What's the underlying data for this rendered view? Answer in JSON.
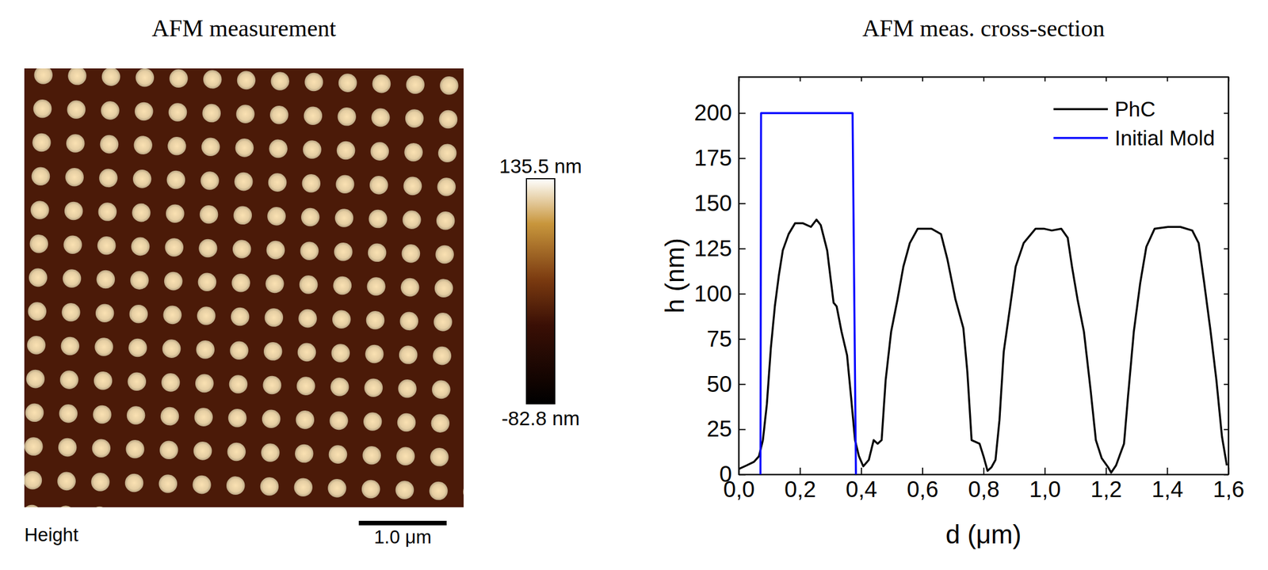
{
  "chart_data": [
    {
      "type": "image",
      "title": "AFM measurement",
      "label": "Height",
      "xlim": [
        0,
        5
      ],
      "ylim": [
        0,
        5
      ],
      "tick_labels": false,
      "period": 0.385,
      "pillar_diameter": 0.21,
      "pillar_height": 115,
      "background_height": 5,
      "colorbar": {
        "range": [
          -82.8,
          135.5
        ],
        "ticks": [
          {
            "value": 135.5,
            "label": "135.5 nm"
          },
          {
            "value": -82.8,
            "label": "-82.8 nm"
          }
        ]
      },
      "scale_bar": {
        "value": 1.0,
        "label": "1.0 μm"
      }
    },
    {
      "type": "line",
      "title": "AFM meas. cross-section",
      "xlabel": "d (μm)",
      "ylabel": "h (nm)",
      "xlim": [
        0,
        1.6
      ],
      "ylim": [
        0,
        220
      ],
      "xticks": [
        {
          "value": 0,
          "label": "0,0"
        },
        {
          "value": 0.2,
          "label": "0,2"
        },
        {
          "value": 0.4,
          "label": "0,4"
        },
        {
          "value": 0.6,
          "label": "0,6"
        },
        {
          "value": 0.8,
          "label": "0,8"
        },
        {
          "value": 1.0,
          "label": "1,0"
        },
        {
          "value": 1.2,
          "label": "1,2"
        },
        {
          "value": 1.4,
          "label": "1,4"
        },
        {
          "value": 1.6,
          "label": "1,6"
        }
      ],
      "yticks": [
        0,
        25,
        50,
        75,
        100,
        125,
        150,
        175,
        200
      ],
      "grid": false,
      "legend": "upper right",
      "series": [
        {
          "name": "PhC",
          "color": "#000000",
          "x": [
            0,
            0.026,
            0.05,
            0.066,
            0.079,
            0.092,
            0.105,
            0.118,
            0.131,
            0.144,
            0.163,
            0.184,
            0.21,
            0.236,
            0.254,
            0.268,
            0.289,
            0.302,
            0.31,
            0.32,
            0.336,
            0.354,
            0.367,
            0.38,
            0.393,
            0.407,
            0.425,
            0.441,
            0.454,
            0.467,
            0.48,
            0.498,
            0.519,
            0.538,
            0.559,
            0.585,
            0.63,
            0.661,
            0.682,
            0.708,
            0.734,
            0.747,
            0.761,
            0.787,
            0.8,
            0.813,
            0.826,
            0.839,
            0.852,
            0.866,
            0.887,
            0.905,
            0.931,
            0.97,
            0.997,
            1.023,
            1.054,
            1.075,
            1.089,
            1.107,
            1.128,
            1.149,
            1.167,
            1.186,
            1.207,
            1.217,
            1.233,
            1.248,
            1.259,
            1.272,
            1.291,
            1.312,
            1.332,
            1.359,
            1.403,
            1.443,
            1.482,
            1.503,
            1.521,
            1.542,
            1.561,
            1.579,
            1.595
          ],
          "values": [
            3,
            5,
            7,
            10,
            19,
            39,
            70,
            93,
            110,
            124,
            133,
            139,
            139,
            137,
            141,
            138,
            124,
            106,
            95,
            93,
            79,
            66,
            43,
            19,
            10,
            4.5,
            8,
            19,
            17,
            19,
            52,
            79,
            97,
            115,
            128,
            136,
            136,
            133,
            119,
            97,
            81,
            57,
            19,
            17,
            10,
            2,
            4,
            8,
            30,
            68,
            93,
            115,
            128,
            136,
            136,
            135,
            136,
            131,
            115,
            97,
            79,
            48,
            19,
            9,
            4,
            1,
            5,
            12,
            17,
            43,
            79,
            106,
            126,
            136,
            137,
            137,
            135,
            128,
            106,
            79,
            52,
            21,
            5
          ]
        },
        {
          "name": "Initial Mold",
          "color": "#0000ff",
          "x": [
            0.071,
            0.073,
            0.372,
            0.383
          ],
          "values": [
            0,
            200,
            200,
            0
          ]
        }
      ]
    }
  ]
}
